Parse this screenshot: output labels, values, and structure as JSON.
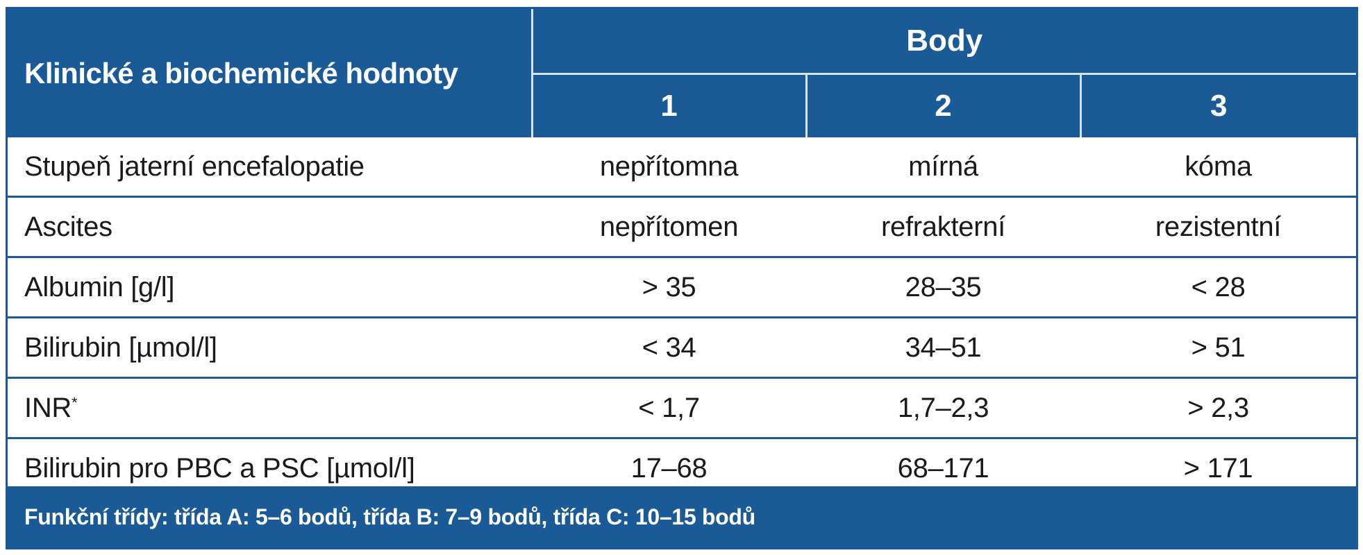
{
  "table": {
    "header": {
      "title": "Klinické a biochemické hodnoty",
      "group": "Body",
      "columns": [
        "1",
        "2",
        "3"
      ]
    },
    "rows": [
      {
        "label": "Stupeň jaterní encefalopatie",
        "sup": "",
        "values": [
          "nepřítomna",
          "mírná",
          "kóma"
        ]
      },
      {
        "label": "Ascites",
        "sup": "",
        "values": [
          "nepřítomen",
          "refrakterní",
          "rezistentní"
        ]
      },
      {
        "label": "Albumin [g/l]",
        "sup": "",
        "values": [
          "> 35",
          "28–35",
          "< 28"
        ]
      },
      {
        "label": "Bilirubin [µmol/l]",
        "sup": "",
        "values": [
          "< 34",
          "34–51",
          "> 51"
        ]
      },
      {
        "label": "INR",
        "sup": "*",
        "values": [
          "< 1,7",
          "1,7–2,3",
          "> 2,3"
        ]
      },
      {
        "label": "Bilirubin pro PBC a PSC [µmol/l]",
        "sup": "",
        "values": [
          "17–68",
          "68–171",
          "> 171"
        ]
      }
    ],
    "footer": "Funkční třídy: třída A: 5–6 bodů, třída B: 7–9 bodů, třída C: 10–15 bodů"
  },
  "colors": {
    "header_bg": "#1a5a96",
    "header_text": "#ffffff",
    "divider": "#d8e3ee"
  }
}
